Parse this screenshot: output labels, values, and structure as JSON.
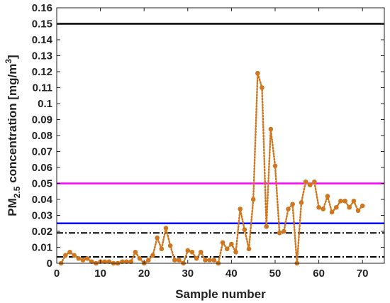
{
  "chart_data": {
    "type": "line",
    "xlabel": "Sample number",
    "ylabel": {
      "main": "PM",
      "sub": "2.5",
      "rest": " concentration [mg/m",
      "sup": "3",
      "close": "]"
    },
    "xlim": [
      0,
      75
    ],
    "ylim": [
      0,
      0.16
    ],
    "xticks": [
      0,
      10,
      20,
      30,
      40,
      50,
      60,
      70
    ],
    "yticks": [
      "0",
      "0.01",
      "0.02",
      "0.03",
      "0.04",
      "0.05",
      "0.06",
      "0.07",
      "0.08",
      "0.09",
      "0.1",
      "0.11",
      "0.12",
      "0.13",
      "0.14",
      "0.15",
      "0.16"
    ],
    "grid": false,
    "series": [
      {
        "marker": "circle",
        "line_style": "dotted",
        "color": "#d0761f",
        "x": [
          1,
          2,
          3,
          4,
          5,
          6,
          7,
          8,
          9,
          10,
          11,
          12,
          13,
          14,
          15,
          16,
          17,
          18,
          19,
          20,
          21,
          22,
          23,
          24,
          25,
          26,
          27,
          28,
          29,
          30,
          31,
          32,
          33,
          34,
          35,
          36,
          37,
          38,
          39,
          40,
          41,
          42,
          43,
          44,
          45,
          46,
          47,
          48,
          49,
          50,
          51,
          52,
          53,
          54,
          55,
          56,
          57,
          58,
          59,
          60,
          61,
          62,
          63,
          64,
          65,
          66,
          67,
          68,
          69,
          70
        ],
        "y": [
          0.0,
          0.005,
          0.007,
          0.005,
          0.003,
          0.002,
          0.003,
          0.001,
          0.0,
          0.001,
          0.001,
          0.001,
          0.0,
          0.0,
          0.001,
          0.001,
          0.001,
          0.007,
          0.003,
          0.0,
          0.002,
          0.005,
          0.016,
          0.009,
          0.022,
          0.011,
          0.002,
          0.002,
          0.0,
          0.008,
          0.007,
          0.003,
          0.007,
          0.002,
          0.002,
          0.002,
          0.0,
          0.013,
          0.009,
          0.012,
          0.007,
          0.034,
          0.021,
          0.009,
          0.04,
          0.119,
          0.11,
          0.023,
          0.084,
          0.061,
          0.019,
          0.02,
          0.034,
          0.037,
          0.0,
          0.038,
          0.051,
          0.049,
          0.051,
          0.035,
          0.034,
          0.042,
          0.032,
          0.035,
          0.039,
          0.039,
          0.035,
          0.039,
          0.033,
          0.036
        ]
      }
    ],
    "reference_lines": [
      {
        "y": 0.15,
        "color": "#000000",
        "style": "solid"
      },
      {
        "y": 0.05,
        "color": "#ff00ff",
        "style": "solid"
      },
      {
        "y": 0.025,
        "color": "#0000ff",
        "style": "solid"
      },
      {
        "y": 0.019,
        "color": "#000000",
        "style": "dashdot"
      },
      {
        "y": 0.004,
        "color": "#000000",
        "style": "dashdot"
      }
    ]
  }
}
